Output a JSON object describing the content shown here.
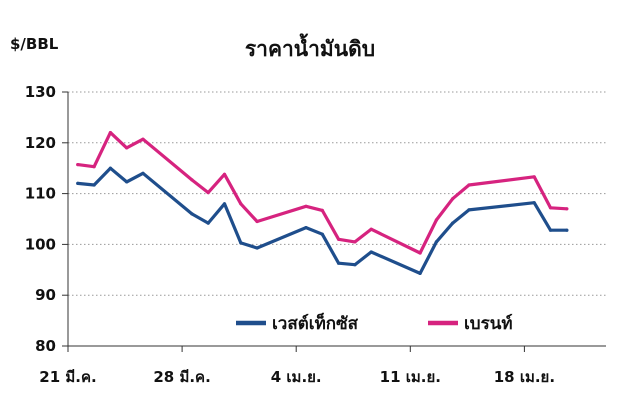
{
  "chart_data": {
    "type": "line",
    "title": "ราคาน้ำมันดิบ",
    "unit_label": "$/BBL",
    "ylim": [
      80,
      130
    ],
    "yticks": [
      80,
      90,
      100,
      110,
      120,
      130
    ],
    "grid": true,
    "legend_position": "bottom-right-inside",
    "x_ticks": [
      {
        "label": "21 มี.ค.",
        "day": 0
      },
      {
        "label": "28 มี.ค.",
        "day": 7
      },
      {
        "label": "4 เม.ย.",
        "day": 14
      },
      {
        "label": "11 เม.ย.",
        "day": 21
      },
      {
        "label": "18 เม.ย.",
        "day": 28
      }
    ],
    "x_range": [
      0,
      32
    ],
    "series": [
      {
        "name": "เวสต์เท็กซัส",
        "color": "#1f4e8c",
        "points": [
          [
            0.6,
            112.0
          ],
          [
            1.6,
            111.7
          ],
          [
            2.6,
            115.0
          ],
          [
            3.6,
            112.3
          ],
          [
            4.6,
            114.0
          ],
          [
            7.6,
            106.0
          ],
          [
            8.6,
            104.2
          ],
          [
            9.6,
            108.0
          ],
          [
            10.6,
            100.3
          ],
          [
            11.6,
            99.3
          ],
          [
            14.6,
            103.3
          ],
          [
            15.6,
            102.0
          ],
          [
            16.6,
            96.3
          ],
          [
            17.6,
            96.0
          ],
          [
            18.6,
            98.5
          ],
          [
            21.6,
            94.3
          ],
          [
            22.6,
            100.5
          ],
          [
            23.6,
            104.2
          ],
          [
            24.6,
            106.8
          ],
          [
            28.6,
            108.2
          ],
          [
            29.6,
            102.8
          ],
          [
            30.6,
            102.8
          ]
        ]
      },
      {
        "name": "เบรนท์",
        "color": "#d6237f",
        "points": [
          [
            0.6,
            115.7
          ],
          [
            1.6,
            115.3
          ],
          [
            2.6,
            122.0
          ],
          [
            3.6,
            119.0
          ],
          [
            4.6,
            120.7
          ],
          [
            7.6,
            112.7
          ],
          [
            8.6,
            110.2
          ],
          [
            9.6,
            113.8
          ],
          [
            10.6,
            108.0
          ],
          [
            11.6,
            104.5
          ],
          [
            14.6,
            107.5
          ],
          [
            15.6,
            106.7
          ],
          [
            16.6,
            101.0
          ],
          [
            17.6,
            100.5
          ],
          [
            18.6,
            103.0
          ],
          [
            21.6,
            98.3
          ],
          [
            22.6,
            104.8
          ],
          [
            23.6,
            109.0
          ],
          [
            24.6,
            111.7
          ],
          [
            28.6,
            113.3
          ],
          [
            29.6,
            107.2
          ],
          [
            30.6,
            107.0
          ]
        ]
      }
    ]
  }
}
